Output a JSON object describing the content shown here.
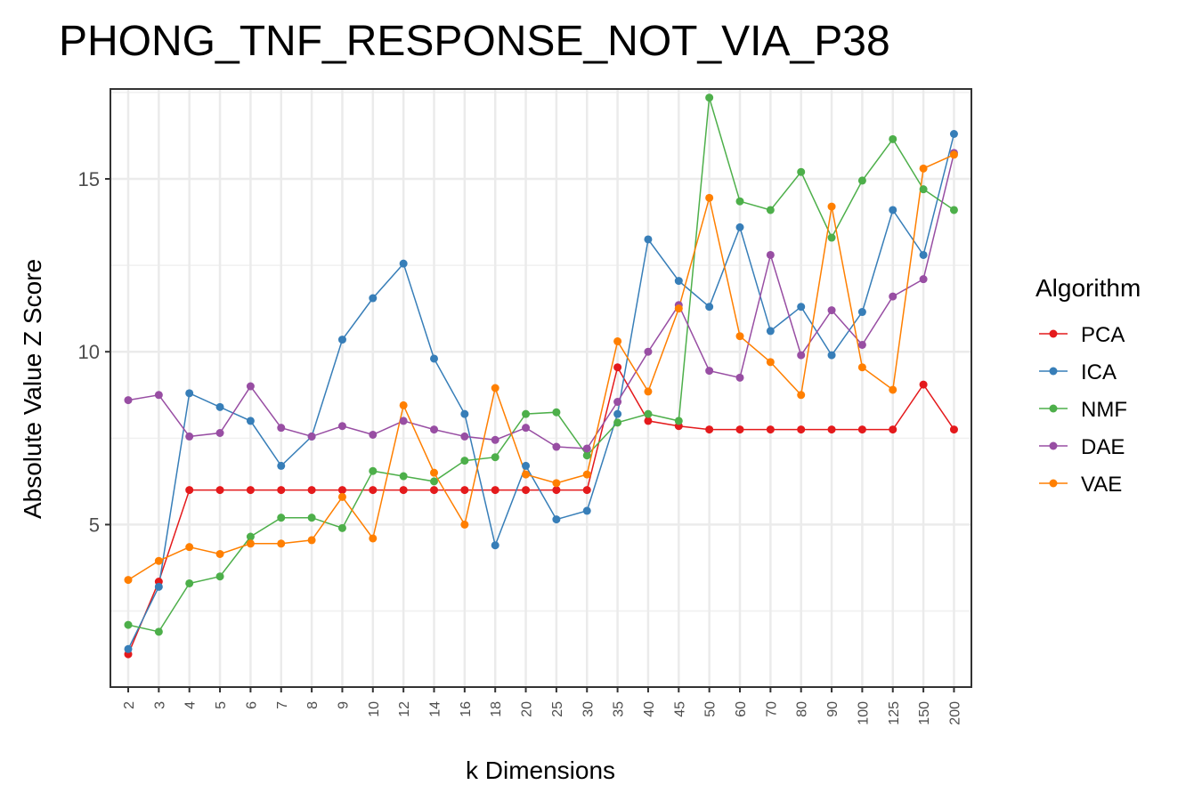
{
  "chart_data": {
    "type": "line",
    "title": "PHONG_TNF_RESPONSE_NOT_VIA_P38",
    "xlabel": "k Dimensions",
    "ylabel": "Absolute Value Z Score",
    "categories": [
      "2",
      "3",
      "4",
      "5",
      "6",
      "7",
      "8",
      "9",
      "10",
      "12",
      "14",
      "16",
      "18",
      "20",
      "25",
      "30",
      "35",
      "40",
      "45",
      "50",
      "60",
      "70",
      "80",
      "90",
      "100",
      "125",
      "150",
      "200"
    ],
    "ylim": [
      0.3,
      17.6
    ],
    "yticks": [
      5,
      10,
      15
    ],
    "grid": true,
    "legend": {
      "title": "Algorithm",
      "position": "right"
    },
    "series": [
      {
        "name": "PCA",
        "color": "#E41A1C",
        "values": [
          1.25,
          3.35,
          6.0,
          6.0,
          6.0,
          6.0,
          6.0,
          6.0,
          6.0,
          6.0,
          6.0,
          6.0,
          6.0,
          6.0,
          6.0,
          6.0,
          9.55,
          8.0,
          7.85,
          7.75,
          7.75,
          7.75,
          7.75,
          7.75,
          7.75,
          7.75,
          9.05,
          7.75
        ]
      },
      {
        "name": "ICA",
        "color": "#377EB8",
        "values": [
          1.4,
          3.2,
          8.8,
          8.4,
          8.0,
          6.7,
          7.55,
          10.35,
          11.55,
          12.55,
          9.8,
          8.2,
          4.4,
          6.7,
          5.15,
          5.4,
          8.2,
          13.25,
          12.05,
          11.3,
          13.6,
          10.6,
          11.3,
          9.9,
          11.15,
          14.1,
          12.8,
          16.3
        ]
      },
      {
        "name": "NMF",
        "color": "#4DAF4A",
        "values": [
          2.1,
          1.9,
          3.3,
          3.5,
          4.65,
          5.2,
          5.2,
          4.9,
          6.55,
          6.4,
          6.25,
          6.85,
          6.95,
          8.2,
          8.25,
          7.0,
          7.95,
          8.2,
          8.0,
          17.35,
          14.35,
          14.1,
          15.2,
          13.3,
          14.95,
          16.15,
          14.7,
          14.1
        ]
      },
      {
        "name": "DAE",
        "color": "#984EA3",
        "values": [
          8.6,
          8.75,
          7.55,
          7.65,
          9.0,
          7.8,
          7.55,
          7.85,
          7.6,
          8.0,
          7.75,
          7.55,
          7.45,
          7.8,
          7.25,
          7.2,
          8.55,
          10.0,
          11.35,
          9.45,
          9.25,
          12.8,
          9.9,
          11.2,
          10.2,
          11.6,
          12.1,
          15.75
        ]
      },
      {
        "name": "VAE",
        "color": "#FF7F00",
        "values": [
          3.4,
          3.95,
          4.35,
          4.15,
          4.45,
          4.45,
          4.55,
          5.8,
          4.6,
          8.45,
          6.5,
          5.0,
          8.95,
          6.45,
          6.2,
          6.45,
          10.3,
          8.85,
          11.25,
          14.45,
          10.45,
          9.7,
          8.75,
          14.2,
          9.55,
          8.9,
          15.3,
          15.7
        ]
      }
    ]
  }
}
